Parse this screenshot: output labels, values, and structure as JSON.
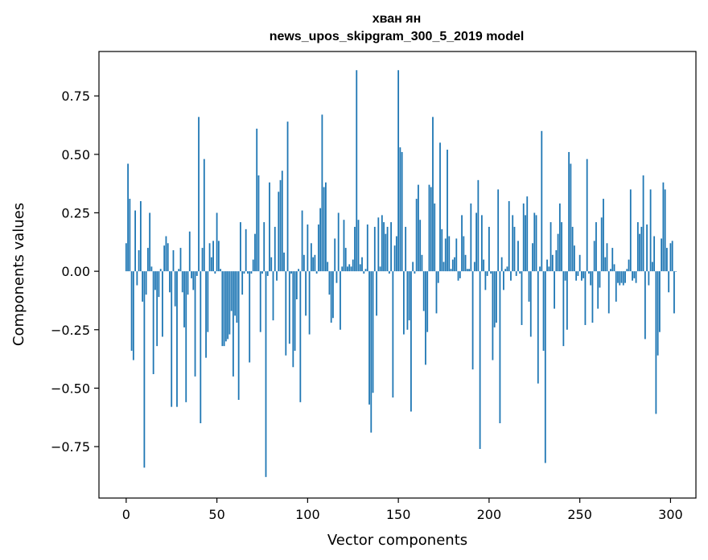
{
  "chart_data": {
    "type": "bar",
    "title_line1": "хван ян",
    "title_line2": "news_upos_skipgram_300_5_2019 model",
    "xlabel": "Vector components",
    "ylabel": "Components values",
    "xlim": [
      -15,
      314
    ],
    "ylim": [
      -0.97,
      0.94
    ],
    "xticks": [
      0,
      50,
      100,
      150,
      200,
      250,
      300
    ],
    "xtick_labels": [
      "0",
      "50",
      "100",
      "150",
      "200",
      "250",
      "300"
    ],
    "yticks": [
      -0.75,
      -0.5,
      -0.25,
      0.0,
      0.25,
      0.5,
      0.75
    ],
    "ytick_labels": [
      "−0.75",
      "−0.50",
      "−0.25",
      "0.00",
      "0.25",
      "0.50",
      "0.75"
    ],
    "bar_color": "#1f77b4",
    "values": [
      0.12,
      0.46,
      0.31,
      -0.34,
      -0.38,
      0.26,
      -0.06,
      0.09,
      0.3,
      -0.13,
      -0.84,
      -0.1,
      0.1,
      0.25,
      0.02,
      -0.44,
      -0.08,
      -0.32,
      -0.11,
      0.01,
      -0.28,
      0.11,
      0.15,
      0.12,
      -0.09,
      -0.58,
      0.09,
      -0.15,
      -0.58,
      0.01,
      0.1,
      -0.09,
      -0.24,
      -0.56,
      -0.1,
      0.17,
      -0.03,
      -0.08,
      -0.45,
      -0.02,
      0.66,
      -0.65,
      0.1,
      0.48,
      -0.37,
      -0.26,
      0.12,
      0.06,
      0.13,
      -0.01,
      0.25,
      0.13,
      0.01,
      -0.32,
      -0.32,
      -0.3,
      -0.29,
      -0.27,
      -0.17,
      -0.45,
      -0.19,
      -0.22,
      -0.55,
      0.21,
      -0.1,
      -0.01,
      0.18,
      -0.01,
      -0.39,
      -0.01,
      0.05,
      0.16,
      0.61,
      0.41,
      -0.26,
      -0.01,
      0.21,
      -0.88,
      -0.02,
      0.38,
      0.06,
      -0.21,
      0.19,
      -0.04,
      0.34,
      0.39,
      0.43,
      0.08,
      -0.36,
      0.64,
      -0.31,
      -0.01,
      -0.41,
      -0.34,
      -0.12,
      0.01,
      -0.56,
      0.26,
      0.07,
      -0.19,
      0.2,
      -0.27,
      0.12,
      0.06,
      0.07,
      -0.01,
      0.2,
      0.27,
      0.67,
      0.36,
      0.38,
      0.04,
      -0.1,
      -0.22,
      -0.2,
      0.14,
      -0.05,
      0.25,
      -0.25,
      0.02,
      0.22,
      0.1,
      0.02,
      0.03,
      0.02,
      0.05,
      0.19,
      0.86,
      0.22,
      0.03,
      0.06,
      -0.01,
      0.01,
      0.2,
      -0.57,
      -0.69,
      -0.52,
      0.19,
      -0.19,
      0.23,
      0.02,
      0.24,
      0.21,
      0.16,
      0.19,
      -0.01,
      0.21,
      -0.54,
      0.11,
      0.15,
      0.86,
      0.53,
      0.51,
      -0.27,
      0.19,
      -0.25,
      -0.21,
      -0.6,
      0.04,
      -0.01,
      0.31,
      0.37,
      0.22,
      0.07,
      -0.17,
      -0.4,
      -0.26,
      0.37,
      0.36,
      0.66,
      0.29,
      -0.18,
      -0.05,
      0.55,
      0.18,
      0.04,
      0.14,
      0.52,
      0.15,
      0.01,
      0.05,
      0.06,
      0.14,
      -0.04,
      -0.03,
      0.24,
      0.15,
      0.07,
      0.01,
      0.01,
      0.29,
      -0.42,
      0.04,
      0.25,
      0.39,
      -0.76,
      0.24,
      0.05,
      -0.08,
      -0.02,
      0.19,
      -0.01,
      -0.38,
      -0.24,
      -0.22,
      0.35,
      -0.65,
      0.06,
      -0.08,
      0.01,
      0.02,
      0.3,
      -0.04,
      0.24,
      0.19,
      -0.02,
      0.13,
      -0.01,
      -0.23,
      0.29,
      0.24,
      0.32,
      -0.13,
      -0.28,
      0.12,
      0.25,
      0.24,
      -0.48,
      0.02,
      0.6,
      -0.34,
      -0.82,
      0.05,
      0.02,
      0.21,
      0.07,
      -0.16,
      0.09,
      0.16,
      0.29,
      0.21,
      -0.32,
      -0.04,
      -0.25,
      0.51,
      0.46,
      0.19,
      0.11,
      -0.04,
      -0.02,
      0.07,
      -0.04,
      -0.03,
      -0.23,
      0.48,
      -0.01,
      -0.06,
      -0.22,
      0.13,
      0.21,
      -0.16,
      -0.07,
      0.23,
      0.31,
      0.06,
      0.12,
      -0.18,
      0.01,
      0.1,
      0.03,
      -0.13,
      -0.05,
      -0.06,
      -0.05,
      -0.06,
      -0.05,
      0.01,
      0.05,
      0.35,
      -0.04,
      -0.03,
      -0.05,
      0.21,
      0.16,
      0.19,
      0.41,
      -0.29,
      0.2,
      -0.06,
      0.35,
      0.04,
      0.15,
      -0.61,
      -0.36,
      -0.26,
      0.14,
      0.38,
      0.35,
      0.1,
      -0.09,
      0.12,
      0.13,
      -0.18,
      0.0
    ]
  }
}
